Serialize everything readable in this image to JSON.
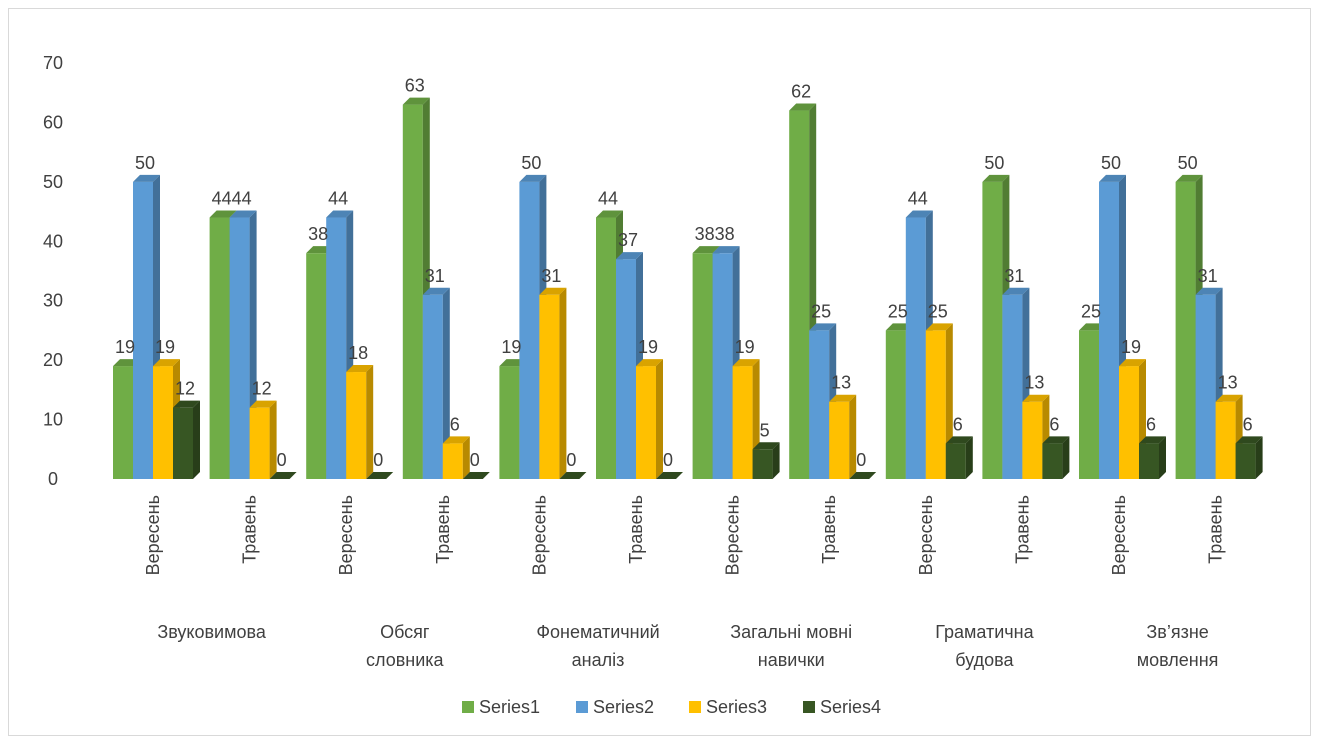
{
  "chart_data": {
    "type": "bar",
    "style": "3d-clustered-column",
    "groups": [
      "Звуковимова",
      "Обсяг словника",
      "Фонематичний аналіз",
      "Загальні мовні навички",
      "Граматична будова",
      "Зв’язне мовлення"
    ],
    "subcategories": [
      "Вересень",
      "Травень"
    ],
    "categories": [
      "Вересень",
      "Травень",
      "Вересень",
      "Травень",
      "Вересень",
      "Травень",
      "Вересень",
      "Травень",
      "Вересень",
      "Травень",
      "Вересень",
      "Травень"
    ],
    "series": [
      {
        "name": "Series1",
        "color": "#70ad47",
        "values": [
          19,
          44,
          38,
          63,
          19,
          44,
          38,
          62,
          25,
          50,
          25,
          50
        ]
      },
      {
        "name": "Series2",
        "color": "#5b9bd5",
        "values": [
          50,
          44,
          44,
          31,
          50,
          37,
          38,
          25,
          44,
          31,
          50,
          31
        ]
      },
      {
        "name": "Series3",
        "color": "#ffc000",
        "values": [
          19,
          12,
          18,
          6,
          31,
          19,
          19,
          13,
          25,
          13,
          19,
          13
        ]
      },
      {
        "name": "Series4",
        "color": "#375623",
        "values": [
          12,
          0,
          0,
          0,
          0,
          0,
          5,
          0,
          6,
          6,
          6,
          6
        ]
      }
    ],
    "y_ticks": [
      "0",
      "10",
      "20",
      "30",
      "40",
      "50",
      "60",
      "70"
    ],
    "ylim": [
      0,
      70
    ],
    "grid": false,
    "legend": "bottom",
    "data_labels": true,
    "title": "",
    "xlabel": "",
    "ylabel": ""
  }
}
